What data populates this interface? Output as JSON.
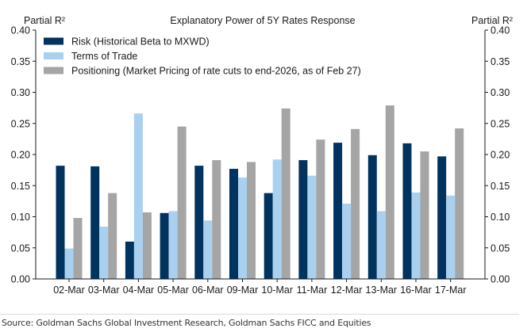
{
  "chart_data": {
    "type": "bar",
    "title": "Explanatory Power of 5Y Rates Response",
    "ylabel_left": "Partial R²",
    "ylabel_right": "Partial R²",
    "xlabel": "",
    "ylim": [
      0,
      0.4
    ],
    "yticks": [
      "0.00",
      "0.05",
      "0.10",
      "0.15",
      "0.20",
      "0.25",
      "0.30",
      "0.35",
      "0.40"
    ],
    "ytick_values": [
      0,
      0.05,
      0.1,
      0.15,
      0.2,
      0.25,
      0.3,
      0.35,
      0.4
    ],
    "grid": false,
    "legend_position": "top-left",
    "categories": [
      "02-Mar",
      "03-Mar",
      "04-Mar",
      "05-Mar",
      "06-Mar",
      "09-Mar",
      "10-Mar",
      "11-Mar",
      "12-Mar",
      "13-Mar",
      "16-Mar",
      "17-Mar"
    ],
    "series": [
      {
        "name": "Risk (Historical Beta to MXWD)",
        "color": "#00335e",
        "values": [
          0.182,
          0.181,
          0.06,
          0.106,
          0.182,
          0.177,
          0.138,
          0.191,
          0.219,
          0.199,
          0.218,
          0.197
        ]
      },
      {
        "name": "Terms of Trade",
        "color": "#a9d1ef",
        "values": [
          0.049,
          0.084,
          0.266,
          0.109,
          0.094,
          0.163,
          0.192,
          0.166,
          0.121,
          0.109,
          0.139,
          0.134
        ]
      },
      {
        "name": "Positioning (Market Pricing of rate cuts to end-2026, as of Feb 27)",
        "color": "#a5a5a5",
        "values": [
          0.098,
          0.138,
          0.107,
          0.245,
          0.191,
          0.188,
          0.274,
          0.224,
          0.241,
          0.279,
          0.205,
          0.242
        ]
      }
    ]
  },
  "footer": {
    "source": "Source: Goldman Sachs Global Investment Research, Goldman Sachs FICC and Equities"
  }
}
